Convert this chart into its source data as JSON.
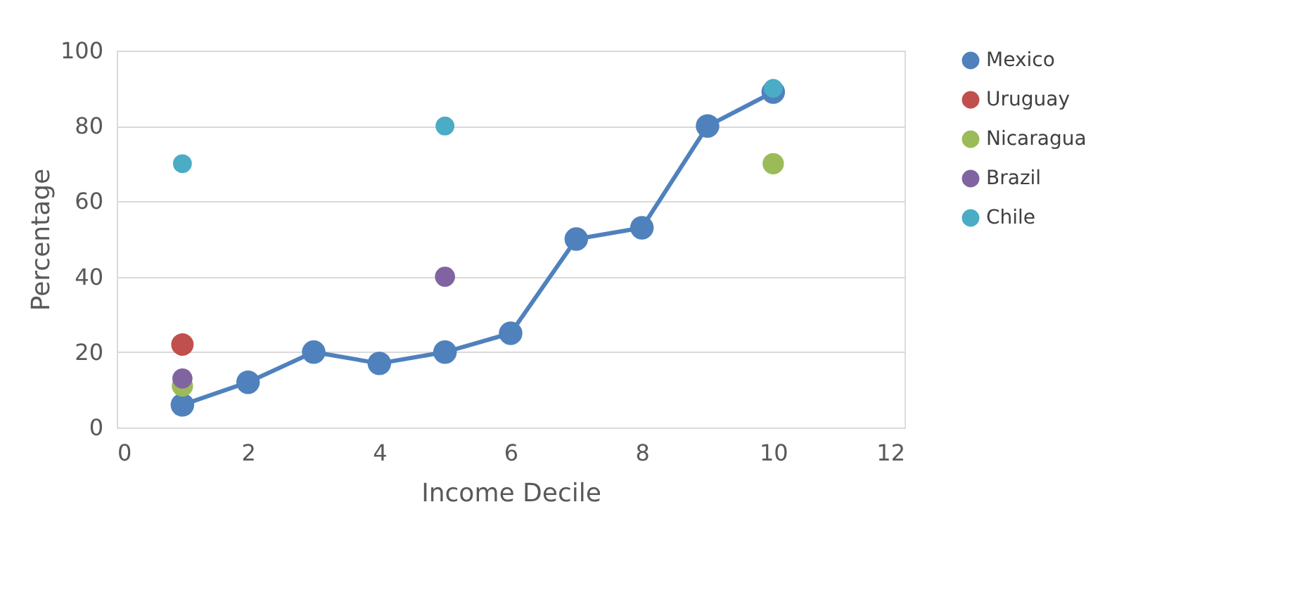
{
  "chart_data": {
    "type": "line",
    "xlabel": "Income Decile",
    "ylabel": "Percentage",
    "xlim": [
      0,
      12
    ],
    "xticks": [
      0,
      2,
      4,
      6,
      8,
      10,
      12
    ],
    "ylim": [
      0,
      100
    ],
    "yticks": [
      0,
      20,
      40,
      60,
      80,
      100
    ],
    "grid": "y",
    "legend": "right",
    "marker": "circle",
    "line_style": "solid",
    "series": [
      {
        "name": "Mexico",
        "color": "#4f81bd",
        "x": [
          1,
          2,
          3,
          4,
          5,
          6,
          7,
          8,
          9,
          10
        ],
        "values": [
          6,
          12,
          20,
          17,
          20,
          25,
          50,
          53,
          80,
          89
        ]
      },
      {
        "name": "Uruguay",
        "type": "scatter",
        "color": "#c0504d",
        "x": [
          1
        ],
        "values": [
          22
        ]
      },
      {
        "name": "Nicaragua",
        "type": "scatter",
        "color": "#9bbb59",
        "x": [
          1,
          10
        ],
        "values": [
          11,
          70
        ]
      },
      {
        "name": "Brazil",
        "type": "scatter",
        "color": "#8064a2",
        "x": [
          1,
          5
        ],
        "values": [
          13,
          40
        ]
      },
      {
        "name": "Chile",
        "type": "scatter",
        "color": "#4bacc6",
        "x": [
          1,
          5,
          10
        ],
        "values": [
          70,
          80,
          90
        ]
      }
    ]
  }
}
